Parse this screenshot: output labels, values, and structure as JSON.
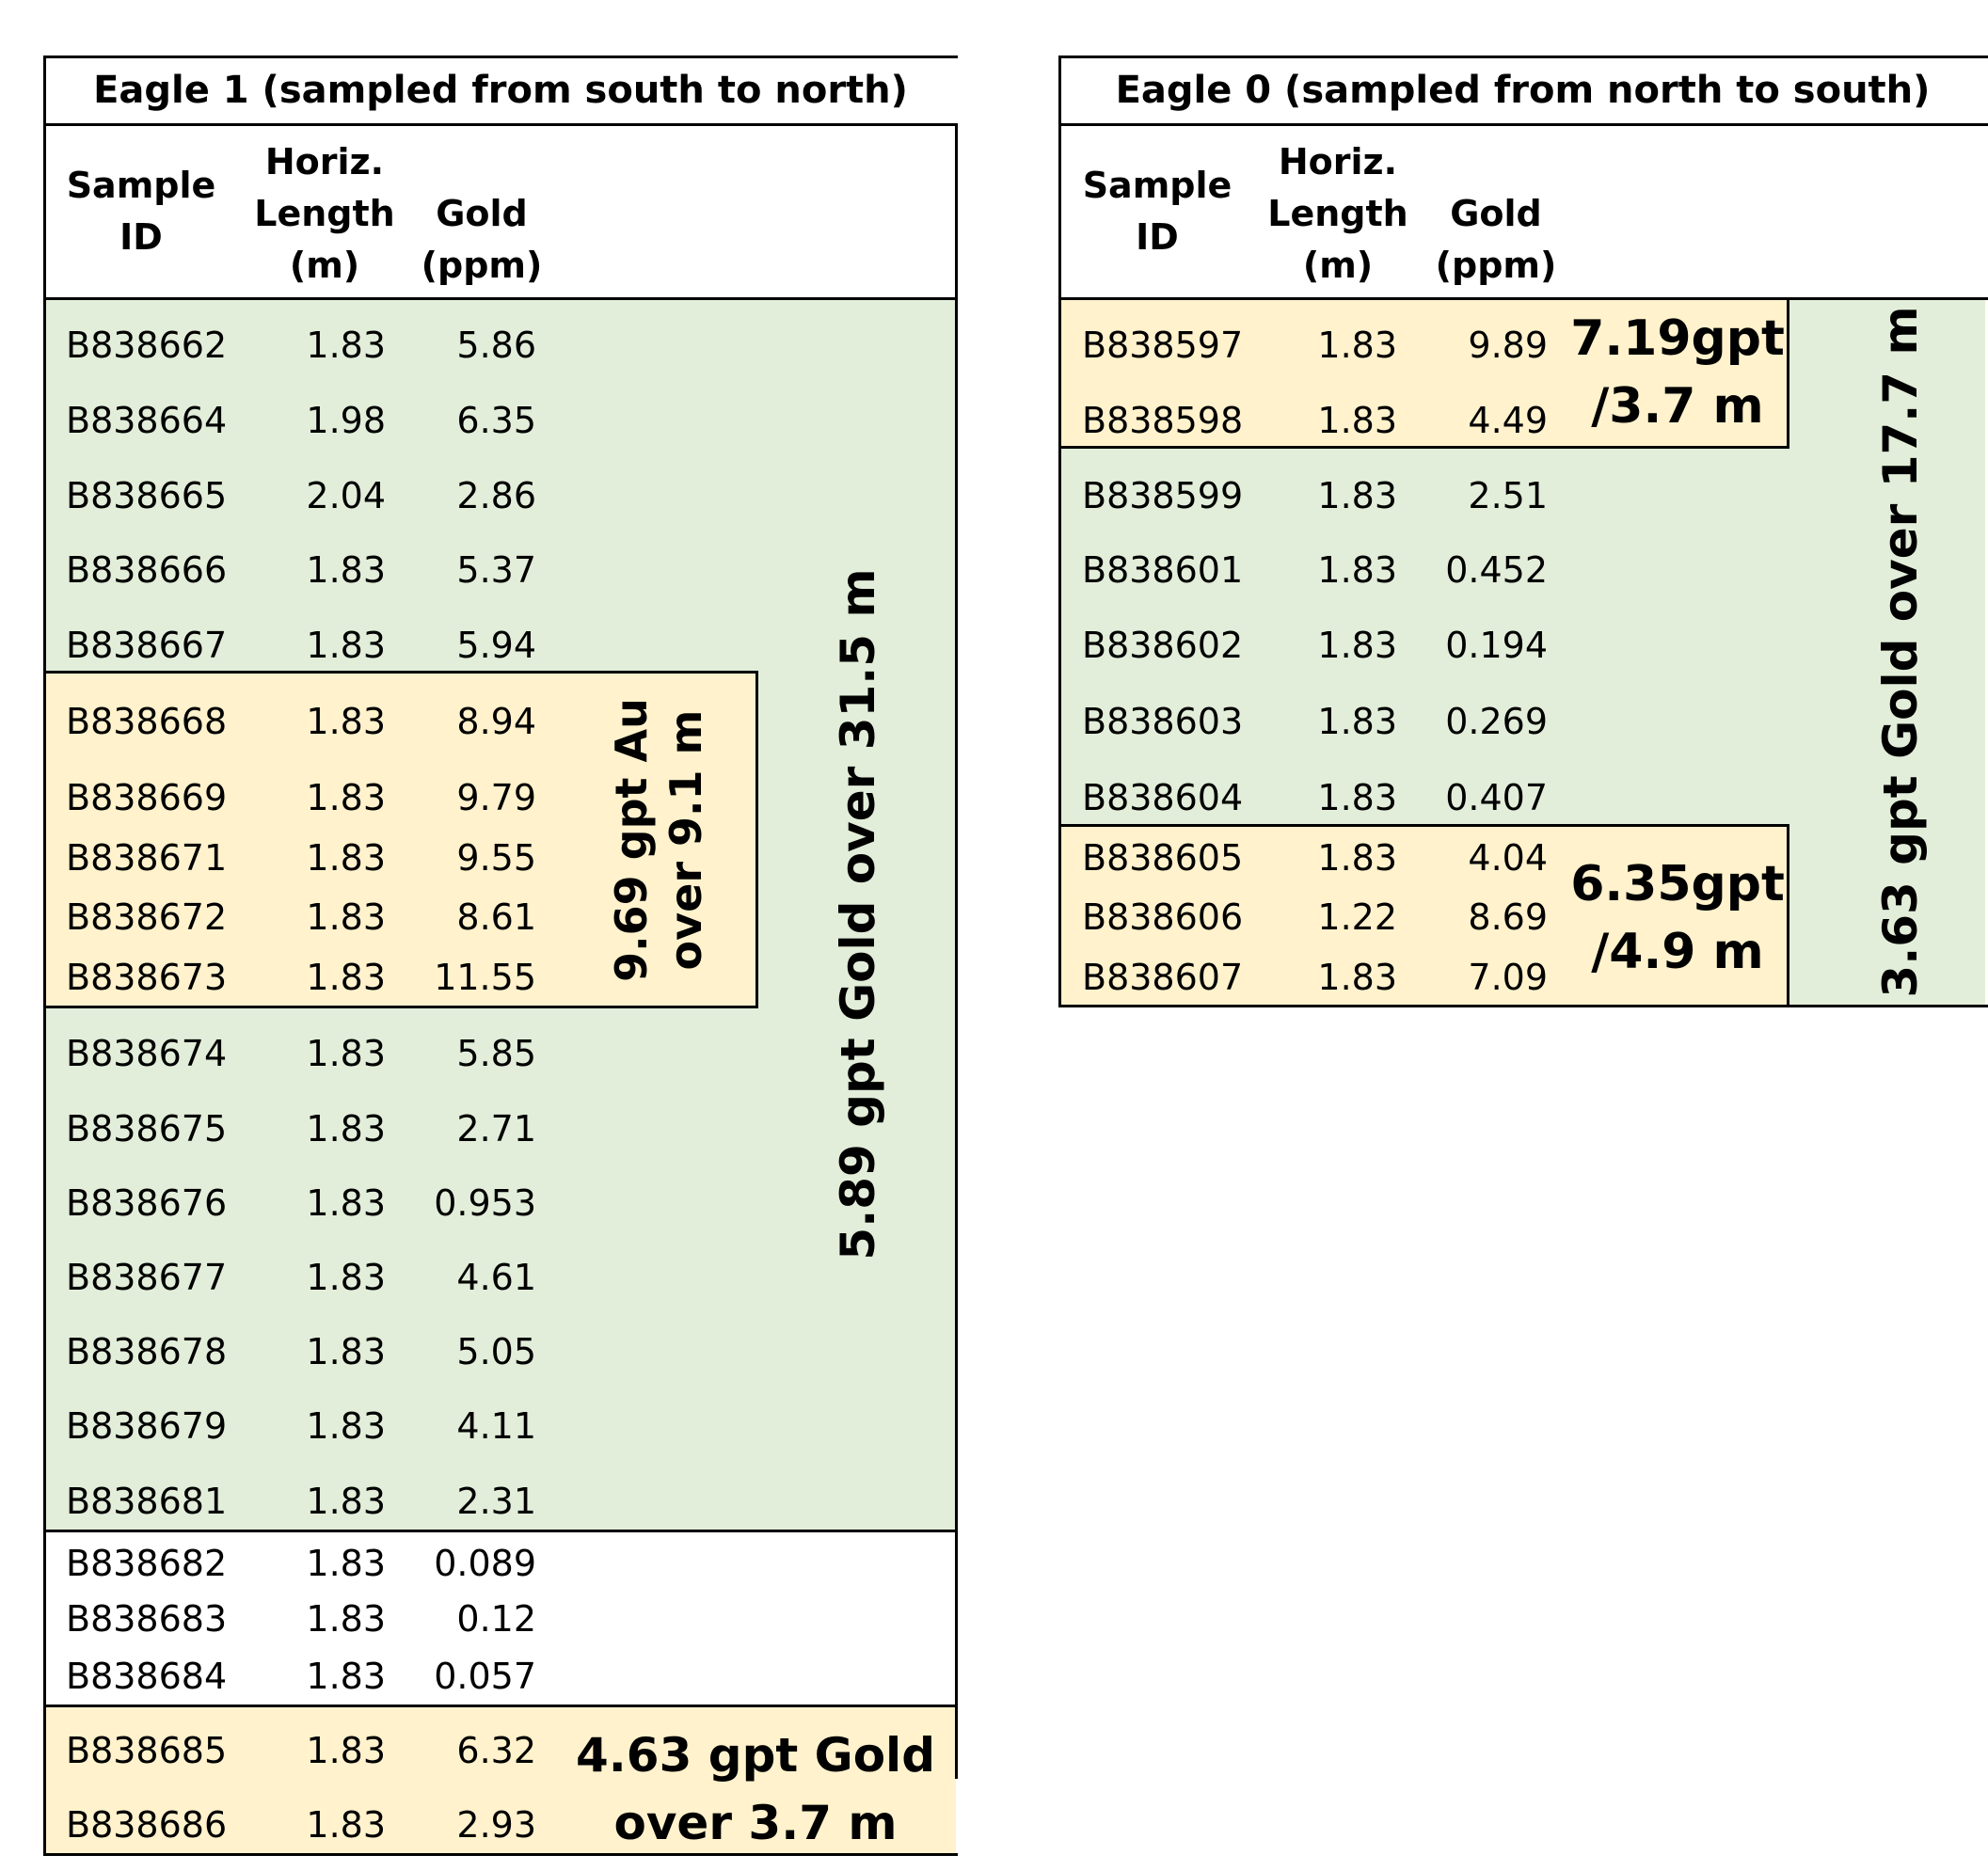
{
  "eagle1": {
    "title": "Eagle 1 (sampled from south to north)",
    "headers": {
      "sample_id": [
        "Sample",
        "ID"
      ],
      "horiz_length": [
        "Horiz.",
        "Length",
        "(m)"
      ],
      "gold": [
        "Gold",
        "(ppm)"
      ]
    },
    "rows": [
      {
        "id": "B838662",
        "len": "1.83",
        "gold": "5.86"
      },
      {
        "id": "B838664",
        "len": "1.98",
        "gold": "6.35"
      },
      {
        "id": "B838665",
        "len": "2.04",
        "gold": "2.86"
      },
      {
        "id": "B838666",
        "len": "1.83",
        "gold": "5.37"
      },
      {
        "id": "B838667",
        "len": "1.83",
        "gold": "5.94"
      },
      {
        "id": "B838668",
        "len": "1.83",
        "gold": "8.94"
      },
      {
        "id": "B838669",
        "len": "1.83",
        "gold": "9.79"
      },
      {
        "id": "B838671",
        "len": "1.83",
        "gold": "9.55"
      },
      {
        "id": "B838672",
        "len": "1.83",
        "gold": "8.61"
      },
      {
        "id": "B838673",
        "len": "1.83",
        "gold": "11.55"
      },
      {
        "id": "B838674",
        "len": "1.83",
        "gold": "5.85"
      },
      {
        "id": "B838675",
        "len": "1.83",
        "gold": "2.71"
      },
      {
        "id": "B838676",
        "len": "1.83",
        "gold": "0.953"
      },
      {
        "id": "B838677",
        "len": "1.83",
        "gold": "4.61"
      },
      {
        "id": "B838678",
        "len": "1.83",
        "gold": "5.05"
      },
      {
        "id": "B838679",
        "len": "1.83",
        "gold": "4.11"
      },
      {
        "id": "B838681",
        "len": "1.83",
        "gold": "2.31"
      },
      {
        "id": "B838682",
        "len": "1.83",
        "gold": "0.089"
      },
      {
        "id": "B838683",
        "len": "1.83",
        "gold": "0.12"
      },
      {
        "id": "B838684",
        "len": "1.83",
        "gold": "0.057"
      },
      {
        "id": "B838685",
        "len": "1.83",
        "gold": "6.32"
      },
      {
        "id": "B838686",
        "len": "1.83",
        "gold": "2.93"
      }
    ],
    "interval_main": "5.89 gpt Gold over 31.5 m",
    "interval_high": [
      "9.69 gpt Au",
      "over 9.1 m"
    ],
    "interval_bottom": [
      "4.63 gpt Gold",
      "over 3.7 m"
    ]
  },
  "eagle0": {
    "title": "Eagle 0 (sampled from north to south)",
    "headers": {
      "sample_id": [
        "Sample",
        "ID"
      ],
      "horiz_length": [
        "Horiz.",
        "Length",
        "(m)"
      ],
      "gold": [
        "Gold",
        "(ppm)"
      ]
    },
    "rows": [
      {
        "id": "B838597",
        "len": "1.83",
        "gold": "9.89"
      },
      {
        "id": "B838598",
        "len": "1.83",
        "gold": "4.49"
      },
      {
        "id": "B838599",
        "len": "1.83",
        "gold": "2.51"
      },
      {
        "id": "B838601",
        "len": "1.83",
        "gold": "0.452"
      },
      {
        "id": "B838602",
        "len": "1.83",
        "gold": "0.194"
      },
      {
        "id": "B838603",
        "len": "1.83",
        "gold": "0.269"
      },
      {
        "id": "B838604",
        "len": "1.83",
        "gold": "0.407"
      },
      {
        "id": "B838605",
        "len": "1.83",
        "gold": "4.04"
      },
      {
        "id": "B838606",
        "len": "1.22",
        "gold": "8.69"
      },
      {
        "id": "B838607",
        "len": "1.83",
        "gold": "7.09"
      }
    ],
    "interval_main": "3.63 gpt Gold over 17.7 m",
    "interval_top": [
      "7.19gpt",
      "/3.7 m"
    ],
    "interval_bottom": [
      "6.35gpt",
      "/4.9 m"
    ]
  }
}
